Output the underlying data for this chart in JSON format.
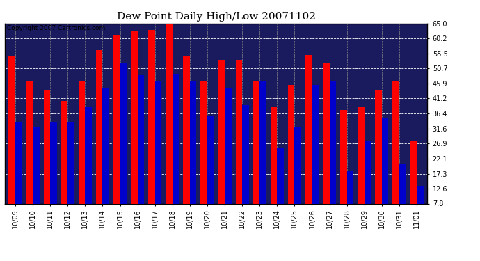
{
  "title": "Dew Point Daily High/Low 20071102",
  "copyright": "Copyright 2007 Cartronics.com",
  "categories": [
    "10/09",
    "10/10",
    "10/11",
    "10/12",
    "10/13",
    "10/14",
    "10/15",
    "10/16",
    "10/17",
    "10/18",
    "10/19",
    "10/20",
    "10/21",
    "10/22",
    "10/23",
    "10/24",
    "10/25",
    "10/26",
    "10/27",
    "10/28",
    "10/29",
    "10/30",
    "10/31",
    "11/01"
  ],
  "highs": [
    54.5,
    46.5,
    44.0,
    40.5,
    46.5,
    56.5,
    61.5,
    62.5,
    63.0,
    65.0,
    54.5,
    46.5,
    53.5,
    53.5,
    46.5,
    38.5,
    45.5,
    55.0,
    52.5,
    37.5,
    38.5,
    44.0,
    46.5,
    27.5
  ],
  "lows": [
    33.5,
    32.0,
    33.5,
    33.5,
    38.5,
    44.5,
    52.5,
    48.5,
    46.5,
    49.0,
    46.5,
    35.5,
    44.5,
    39.0,
    46.5,
    25.5,
    32.0,
    45.5,
    46.5,
    18.0,
    27.5,
    35.0,
    20.5,
    13.5
  ],
  "high_color": "#ff0000",
  "low_color": "#0000cc",
  "bg_color": "#ffffff",
  "plot_bg_color": "#1a1a5e",
  "grid_color": "#888888",
  "yticks": [
    7.8,
    12.6,
    17.3,
    22.1,
    26.9,
    31.6,
    36.4,
    41.2,
    45.9,
    50.7,
    55.5,
    60.2,
    65.0
  ],
  "ylim": [
    7.8,
    65.0
  ],
  "ybase": 7.8,
  "bar_width": 0.38,
  "title_fontsize": 11,
  "tick_fontsize": 7,
  "copyright_fontsize": 6.5
}
